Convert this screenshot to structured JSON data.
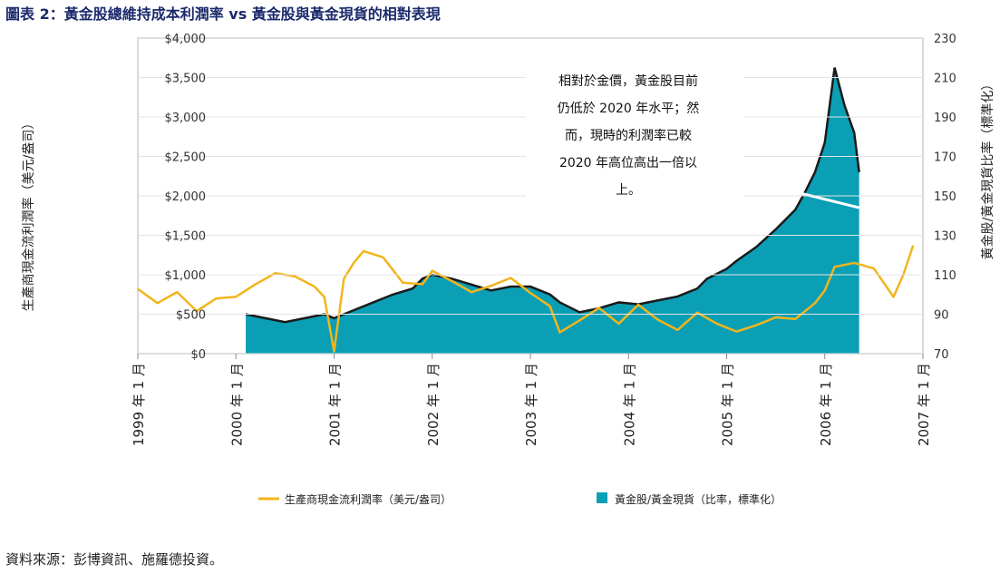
{
  "title": "圖表 2：黃金股總維持成本利潤率 vs 黃金股與黃金現貨的相對表現",
  "source": "資料來源：彭博資訊、施羅德投資。",
  "colors": {
    "margin_line": "#f2b51c",
    "ratio_area": "#0a9fb5",
    "ratio_edge": "#1a1a1a",
    "trend_line": "#ffffff"
  },
  "chart_data": {
    "type": "area",
    "left_axis": {
      "label": "生產商現金流利潤率（美元/盎司）",
      "range": [
        0,
        4000
      ],
      "ticks": [
        "$0",
        "$500",
        "$1,000",
        "$1,500",
        "$2,000",
        "$2,500",
        "$3,000",
        "$3,500",
        "$4,000"
      ]
    },
    "right_axis": {
      "label": "黃金股/黃金現貨比率（標準化）",
      "range": [
        70,
        230
      ],
      "ticks": [
        "70",
        "90",
        "110",
        "130",
        "150",
        "170",
        "190",
        "210",
        "230"
      ]
    },
    "x_axis": {
      "range": [
        1999,
        2007
      ],
      "ticks": [
        "1999 年 1 月",
        "2000 年 1 月",
        "2001 年 1 月",
        "2002 年 1 月",
        "2003 年 1 月",
        "2004 年 1 月",
        "2005 年 1 月",
        "2006 年 1 月",
        "2007 年 1 月"
      ]
    },
    "legend": [
      "生產商現金流利潤率（美元/盎司）",
      "黃金股/黃金現貨（比率，標準化）"
    ],
    "annotation": [
      "相對於金價，黃金股目前",
      "仍低於 2020 年水平；然",
      "而，現時的利潤率已較",
      "2020 年高位高出一倍以",
      "上。"
    ],
    "series": [
      {
        "axis": "right",
        "kind": "area",
        "x": [
          2000.1,
          2000.3,
          2000.5,
          2000.7,
          2000.9,
          2001.0,
          2001.2,
          2001.4,
          2001.6,
          2001.8,
          2001.9,
          2002.0,
          2002.2,
          2002.4,
          2002.6,
          2002.8,
          2003.0,
          2003.2,
          2003.3,
          2003.5,
          2003.7,
          2003.9,
          2004.1,
          2004.3,
          2004.5,
          2004.7,
          2004.8,
          2005.0,
          2005.1,
          2005.3,
          2005.5,
          2005.7,
          2005.8,
          2005.9,
          2006.0,
          2006.1,
          2006.2,
          2006.3,
          2006.35
        ],
        "values": [
          90,
          88,
          86,
          88,
          90,
          88,
          92,
          96,
          100,
          103,
          108,
          110,
          108,
          105,
          102,
          104,
          104,
          100,
          96,
          91,
          93,
          96,
          95,
          97,
          99,
          103,
          108,
          113,
          117,
          124,
          133,
          143,
          152,
          162,
          177,
          215,
          196,
          182,
          162
        ]
      },
      {
        "axis": "left",
        "kind": "line",
        "x": [
          1999.0,
          1999.2,
          1999.4,
          1999.6,
          1999.8,
          2000.0,
          2000.2,
          2000.4,
          2000.6,
          2000.8,
          2000.9,
          2001.0,
          2001.1,
          2001.2,
          2001.3,
          2001.5,
          2001.7,
          2001.9,
          2002.0,
          2002.2,
          2002.4,
          2002.6,
          2002.8,
          2003.0,
          2003.2,
          2003.3,
          2003.5,
          2003.7,
          2003.9,
          2004.1,
          2004.3,
          2004.5,
          2004.7,
          2004.9,
          2005.1,
          2005.3,
          2005.5,
          2005.7,
          2005.9,
          2006.0,
          2006.1,
          2006.3,
          2006.5,
          2006.7,
          2006.8,
          2006.9
        ],
        "values": [
          820,
          640,
          780,
          540,
          700,
          720,
          880,
          1020,
          980,
          850,
          720,
          30,
          950,
          1150,
          1300,
          1220,
          900,
          880,
          1050,
          920,
          780,
          860,
          960,
          770,
          600,
          270,
          420,
          580,
          380,
          620,
          430,
          300,
          520,
          380,
          280,
          360,
          460,
          440,
          640,
          800,
          1100,
          1150,
          1080,
          720,
          1000,
          1370
        ]
      }
    ],
    "trend_line": {
      "axis": "right",
      "x": [
        2005.7,
        2006.35
      ],
      "values": [
        152,
        144
      ]
    }
  }
}
